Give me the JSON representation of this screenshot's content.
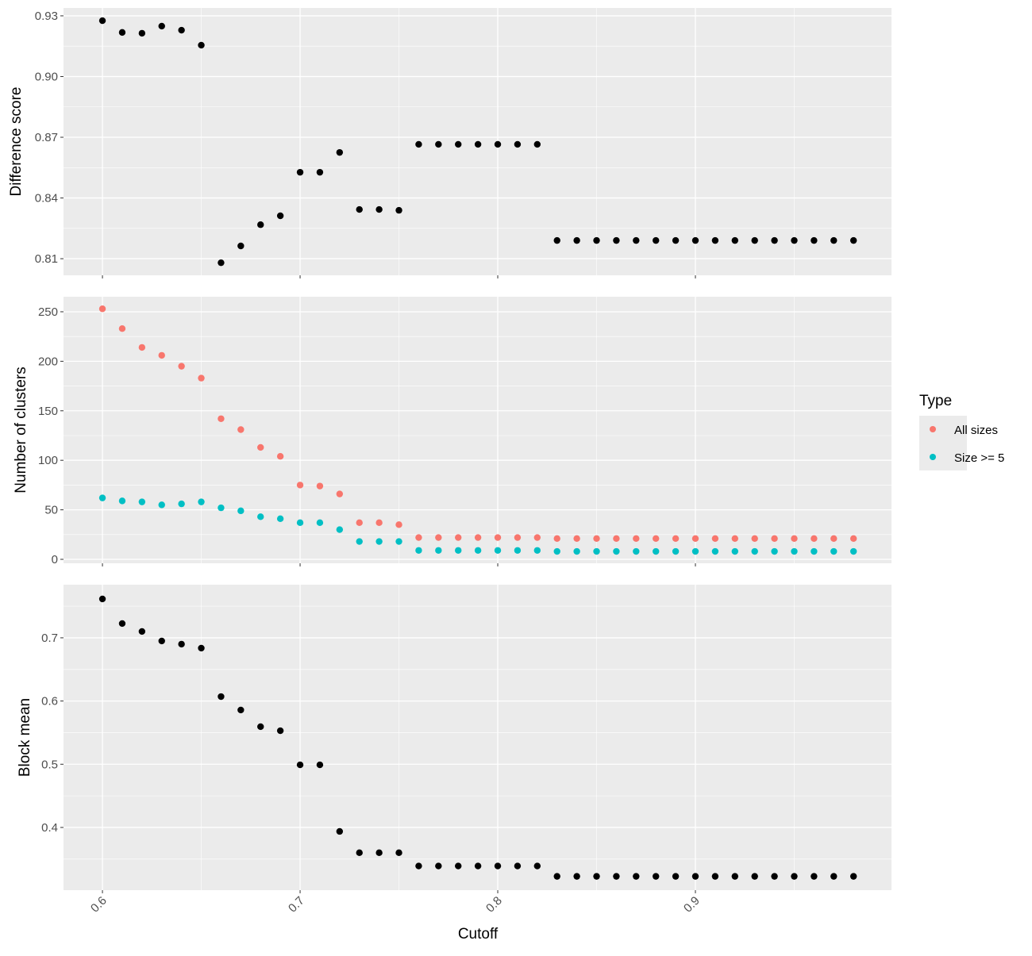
{
  "chart_data": {
    "type": "scatter",
    "xlabel": "Cutoff",
    "x_ticks": [
      "0.6",
      "0.7",
      "0.8",
      "0.9"
    ],
    "xlim": [
      0.5803,
      0.9992
    ],
    "x": [
      0.6,
      0.61,
      0.62,
      0.63,
      0.64,
      0.65,
      0.66,
      0.67,
      0.68,
      0.69,
      0.7,
      0.71,
      0.72,
      0.73,
      0.74,
      0.75,
      0.76,
      0.77,
      0.78,
      0.79,
      0.8,
      0.81,
      0.82,
      0.83,
      0.84,
      0.85,
      0.86,
      0.87,
      0.88,
      0.89,
      0.9,
      0.91,
      0.92,
      0.93,
      0.94,
      0.95,
      0.96,
      0.97,
      0.98
    ],
    "grid": true,
    "panels": [
      {
        "ylabel": "Difference score",
        "ylim": [
          0.8018,
          0.9339
        ],
        "y_ticks": [
          0.81,
          0.84,
          0.87,
          0.9,
          0.93
        ],
        "y_tick_labels": [
          "0.81",
          "0.84",
          "0.87",
          "0.90",
          "0.93"
        ],
        "series": [
          {
            "name": "Difference score",
            "color": "#000000",
            "values": [
              0.9276,
              0.9218,
              0.9214,
              0.9249,
              0.9229,
              0.9155,
              0.808,
              0.8163,
              0.8268,
              0.8312,
              0.8527,
              0.8527,
              0.8625,
              0.8343,
              0.8343,
              0.8339,
              0.8665,
              0.8665,
              0.8665,
              0.8665,
              0.8665,
              0.8665,
              0.8665,
              0.819,
              0.819,
              0.819,
              0.819,
              0.819,
              0.819,
              0.819,
              0.819,
              0.819,
              0.819,
              0.819,
              0.819,
              0.819,
              0.819,
              0.819,
              0.819
            ]
          }
        ]
      },
      {
        "ylabel": "Number of clusters",
        "ylim": [
          -4,
          265.2
        ],
        "y_ticks": [
          0,
          50,
          100,
          150,
          200,
          250
        ],
        "y_tick_labels": [
          "0",
          "50",
          "100",
          "150",
          "200",
          "250"
        ],
        "series": [
          {
            "name": "All sizes",
            "color": "#F8766D",
            "values": [
              253,
              233,
              214,
              206,
              195,
              183,
              142,
              131,
              113,
              104,
              75,
              74,
              66,
              37,
              37,
              35,
              22,
              22,
              22,
              22,
              22,
              22,
              22,
              21,
              21,
              21,
              21,
              21,
              21,
              21,
              21,
              21,
              21,
              21,
              21,
              21,
              21,
              21,
              21
            ]
          },
          {
            "name": "Size >= 5",
            "color": "#00BFC4",
            "values": [
              62,
              59,
              58,
              55,
              56,
              58,
              52,
              49,
              43,
              41,
              37,
              37,
              30,
              18,
              18,
              18,
              9,
              9,
              9,
              9,
              9,
              9,
              9,
              8,
              8,
              8,
              8,
              8,
              8,
              8,
              8,
              8,
              8,
              8,
              8,
              8,
              8,
              8,
              8
            ]
          }
        ]
      },
      {
        "ylabel": "Block mean",
        "ylim": [
          0.3008,
          0.784
        ],
        "y_ticks": [
          0.4,
          0.5,
          0.6,
          0.7
        ],
        "y_tick_labels": [
          "0.4",
          "0.5",
          "0.6",
          "0.7"
        ],
        "series": [
          {
            "name": "Block mean",
            "color": "#000000",
            "values": [
              0.7615,
              0.7226,
              0.71,
              0.695,
              0.69,
              0.6837,
              0.607,
              0.5858,
              0.5594,
              0.553,
              0.499,
              0.499,
              0.3937,
              0.36,
              0.36,
              0.36,
              0.339,
              0.339,
              0.339,
              0.339,
              0.339,
              0.339,
              0.339,
              0.3226,
              0.3226,
              0.3226,
              0.3226,
              0.3226,
              0.3226,
              0.3226,
              0.3226,
              0.3226,
              0.3226,
              0.3226,
              0.3226,
              0.3226,
              0.3226,
              0.3226,
              0.3226
            ]
          }
        ]
      }
    ],
    "legend": {
      "title": "Type",
      "placement": "right",
      "entries": [
        {
          "label": "All sizes",
          "color": "#F8766D"
        },
        {
          "label": "Size >= 5",
          "color": "#00BFC4"
        }
      ]
    }
  }
}
